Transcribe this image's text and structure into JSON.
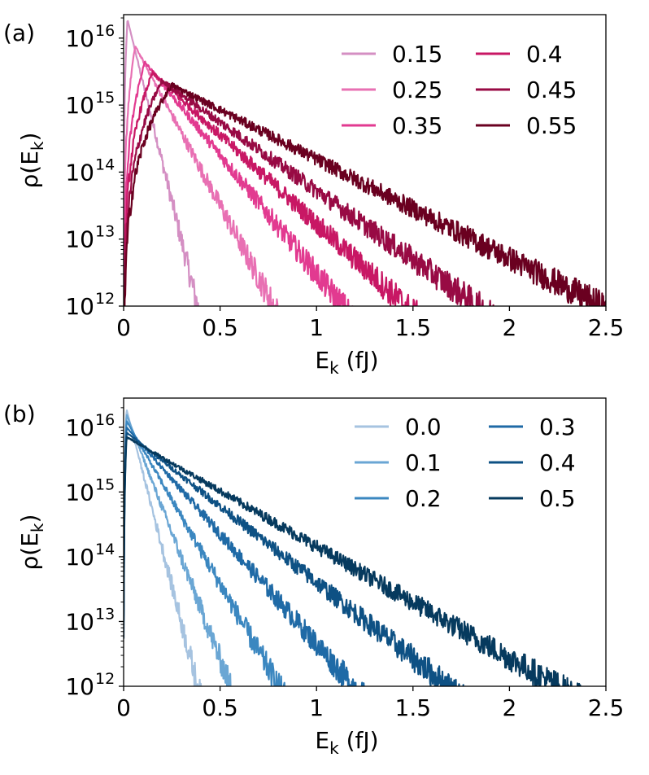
{
  "chart_data": [
    {
      "type": "line",
      "panel_label": "(a)",
      "xlabel": "E",
      "xlabel_sub": "k",
      "xlabel_unit": " (fJ)",
      "ylabel": "ρ(E",
      "ylabel_sub": "k",
      "ylabel_close": ")",
      "xlim": [
        0,
        2.5
      ],
      "ylim_log10": [
        12,
        16.35
      ],
      "x_ticks": [
        0,
        0.5,
        1,
        1.5,
        2,
        2.5
      ],
      "x_tick_labels": [
        "0",
        "0.5",
        "1",
        "1.5",
        "2",
        "2.5"
      ],
      "y_tick_exponents": [
        "12",
        "13",
        "14",
        "15",
        "16"
      ],
      "y_tick_base": "10",
      "legend_position": "top-right",
      "series": [
        {
          "name": "0.15",
          "color": "#d48fc3",
          "peak_x": 0.02,
          "peak_log10": 16.28,
          "decay_per_fJ": 11.8
        },
        {
          "name": "0.25",
          "color": "#e870b3",
          "peak_x": 0.06,
          "peak_log10": 15.88,
          "decay_per_fJ": 5.4
        },
        {
          "name": "0.35",
          "color": "#e23a90",
          "peak_x": 0.11,
          "peak_log10": 15.64,
          "decay_per_fJ": 3.55
        },
        {
          "name": "0.4",
          "color": "#c81764",
          "peak_x": 0.15,
          "peak_log10": 15.48,
          "decay_per_fJ": 2.65
        },
        {
          "name": "0.45",
          "color": "#980a44",
          "peak_x": 0.2,
          "peak_log10": 15.36,
          "decay_per_fJ": 2.05
        },
        {
          "name": "0.55",
          "color": "#6a0020",
          "peak_x": 0.25,
          "peak_log10": 15.3,
          "decay_per_fJ": 1.48
        }
      ]
    },
    {
      "type": "line",
      "panel_label": "(b)",
      "xlabel": "E",
      "xlabel_sub": "k",
      "xlabel_unit": " (fJ)",
      "ylabel": "ρ(E",
      "ylabel_sub": "k",
      "ylabel_close": ")",
      "xlim": [
        0,
        2.5
      ],
      "ylim_log10": [
        12,
        16.45
      ],
      "x_ticks": [
        0,
        0.5,
        1,
        1.5,
        2,
        2.5
      ],
      "x_tick_labels": [
        "0",
        "0.5",
        "1",
        "1.5",
        "2",
        "2.5"
      ],
      "y_tick_exponents": [
        "12",
        "13",
        "14",
        "15",
        "16"
      ],
      "y_tick_base": "10",
      "legend_position": "top-right",
      "series": [
        {
          "name": "0.0",
          "color": "#a6c3e0",
          "peak_x": 0.015,
          "peak_log10": 16.28,
          "decay_per_fJ": 11.6
        },
        {
          "name": "0.1",
          "color": "#6aa6d4",
          "peak_x": 0.015,
          "peak_log10": 16.2,
          "decay_per_fJ": 7.8
        },
        {
          "name": "0.2",
          "color": "#3b87c0",
          "peak_x": 0.015,
          "peak_log10": 16.1,
          "decay_per_fJ": 5.2
        },
        {
          "name": "0.3",
          "color": "#1f6aa6",
          "peak_x": 0.015,
          "peak_log10": 16.0,
          "decay_per_fJ": 3.4
        },
        {
          "name": "0.4",
          "color": "#0e5184",
          "peak_x": 0.015,
          "peak_log10": 15.92,
          "decay_per_fJ": 2.35
        },
        {
          "name": "0.5",
          "color": "#063a5e",
          "peak_x": 0.015,
          "peak_log10": 15.85,
          "decay_per_fJ": 1.72
        }
      ]
    }
  ]
}
